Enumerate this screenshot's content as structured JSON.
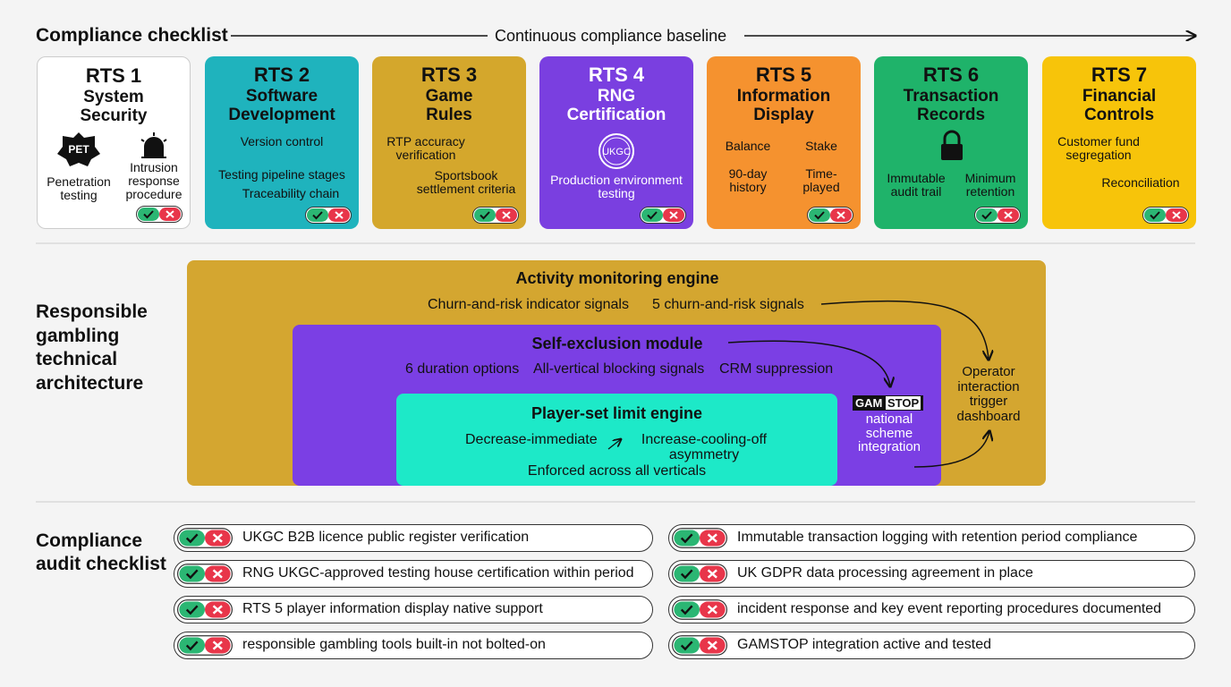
{
  "checklist": {
    "title": "Compliance checklist",
    "baseline": "Continuous compliance baseline",
    "cards": [
      {
        "code": "RTS 1",
        "name": [
          "System",
          "Security"
        ],
        "badge": "PET",
        "items": [
          "Penetration testing",
          "Intrusion response procedure"
        ]
      },
      {
        "code": "RTS 2",
        "name": [
          "Software",
          "Development"
        ],
        "items": [
          "Version control",
          "Testing pipeline stages",
          "Traceability chain"
        ]
      },
      {
        "code": "RTS 3",
        "name": [
          "Game",
          "Rules"
        ],
        "items": [
          "RTP accuracy verification",
          "Sportsbook settlement criteria"
        ]
      },
      {
        "code": "RTS 4",
        "name": [
          "RNG",
          "Certification"
        ],
        "badge": "UKGC",
        "items": [
          "Production environment testing"
        ]
      },
      {
        "code": "RTS 5",
        "name": [
          "Information",
          "Display"
        ],
        "items": [
          "Balance",
          "Stake",
          "90-day history",
          "Time-played"
        ]
      },
      {
        "code": "RTS 6",
        "name": [
          "Transaction",
          "Records"
        ],
        "items": [
          "Immutable audit trail",
          "Minimum retention"
        ]
      },
      {
        "code": "RTS 7",
        "name": [
          "Financial",
          "Controls"
        ],
        "items": [
          "Customer fund segregation",
          "Reconciliation"
        ]
      }
    ]
  },
  "architecture": {
    "title": "Responsible gambling technical architecture",
    "activity": {
      "title": "Activity monitoring engine",
      "items": [
        "Churn-and-risk indicator signals",
        "5 churn-and-risk signals"
      ]
    },
    "self_exclusion": {
      "title": "Self-exclusion module",
      "items": [
        "6 duration options",
        "All-vertical blocking signals",
        "CRM suppression"
      ]
    },
    "limit": {
      "title": "Player-set limit engine",
      "items": [
        "Decrease-immediate",
        "Increase-cooling-off asymmetry",
        "Enforced across all verticals"
      ]
    },
    "gamstop": {
      "logo": [
        "GAM",
        "STOP"
      ],
      "text": "national scheme integration"
    },
    "dashboard": "Operator interaction trigger dashboard"
  },
  "audit": {
    "title": "Compliance audit checklist",
    "items": [
      "UKGC B2B licence public register verification",
      "RNG UKGC-approved testing house certification within period",
      "RTS 5 player information display native support",
      "responsible gambling tools built-in not bolted-on",
      "Immutable transaction logging with retention period compliance",
      "UK GDPR data processing agreement in place",
      "incident response and key event reporting procedures documented",
      "GAMSTOP integration active and tested"
    ]
  }
}
